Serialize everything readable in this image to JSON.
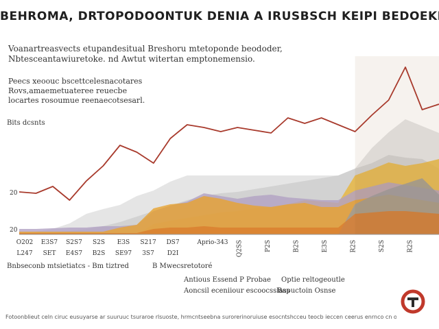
{
  "header": {
    "title": "BEHROMA, DRTOPODOONTUK DENIA A IRUSBSCH  KEIPI BEDOEKPE",
    "subtitle": "Voanartreasvects etupandesitual Breshoru mtetoponde beododer, Nbtesceantawiuretoke. nd Awtut witertan emptonemensio.",
    "note": "Peecs xeoouc bscettcelesnacotares Rovs,amaemetuateree reuecbe locartes rosoumue reenaecotsesarl."
  },
  "chart_data": {
    "type": "area",
    "title": "BEHROMA, DRTOPODOONTUK DENIA A IRUSBSCH  KEIPI BEDOEKPE",
    "ylabel": "Bits dcsnts",
    "xlabel": "",
    "x_labels": [
      [
        "O202",
        "L247"
      ],
      [
        "E3S7",
        "SET"
      ],
      [
        "S2S7",
        "E4S7"
      ],
      [
        "S2S",
        "B2S"
      ],
      [
        "E3S",
        "SE97"
      ],
      [
        "S217",
        "3S7"
      ],
      [
        "DS7",
        "D2I"
      ],
      [
        "Aprio-343",
        ""
      ],
      [
        "Q2SS",
        ""
      ],
      [
        "P2S",
        ""
      ],
      [
        "B2S",
        ""
      ],
      [
        "E3S",
        ""
      ],
      [
        "R2S",
        ""
      ],
      [
        "S2S",
        ""
      ],
      [
        "R2S",
        ""
      ]
    ],
    "y_ticks": [
      "20",
      "20"
    ],
    "x": [
      0,
      1,
      2,
      3,
      4,
      5,
      6,
      7,
      8,
      9,
      10,
      11,
      12,
      13,
      14,
      15,
      16,
      17,
      18,
      19,
      20,
      21,
      22,
      23,
      24,
      25
    ],
    "series": [
      {
        "color": "#e0e0e0",
        "values": [
          2,
          4,
          8,
          16,
          30,
          37,
          43,
          56,
          64,
          77,
          86,
          86,
          86,
          86,
          86,
          86,
          86,
          86,
          86,
          86,
          96,
          126,
          149,
          168,
          158,
          148
        ]
      },
      {
        "color": "#cfcfcf",
        "values": [
          1,
          2,
          3,
          5,
          8,
          12,
          18,
          26,
          34,
          42,
          50,
          56,
          60,
          62,
          66,
          70,
          74,
          78,
          82,
          86,
          96,
          104,
          116,
          112,
          110,
          96
        ]
      },
      {
        "color": "#e8b53b",
        "values": [
          0,
          0,
          0,
          0,
          0,
          0,
          0,
          0,
          15,
          20,
          24,
          28,
          32,
          34,
          38,
          40,
          44,
          50,
          48,
          46,
          86,
          95,
          105,
          100,
          104,
          110
        ]
      },
      {
        "color": "#b1a1c3",
        "values": [
          8,
          8,
          9,
          10,
          10,
          12,
          12,
          14,
          34,
          42,
          48,
          60,
          56,
          52,
          56,
          58,
          54,
          52,
          50,
          50,
          64,
          70,
          76,
          72,
          68,
          64
        ]
      },
      {
        "color": "#e7a22f",
        "values": [
          4,
          4,
          4,
          4,
          4,
          4,
          10,
          14,
          38,
          44,
          46,
          56,
          52,
          46,
          42,
          40,
          44,
          46,
          40,
          40,
          50,
          54,
          58,
          54,
          50,
          46
        ]
      },
      {
        "color": "#9b9b9b",
        "values": [
          0,
          0,
          0,
          0,
          0,
          0,
          0,
          0,
          0,
          0,
          0,
          0,
          0,
          0,
          0,
          0,
          0,
          0,
          0,
          0,
          44,
          56,
          66,
          74,
          82,
          58
        ]
      },
      {
        "color": "#d97d2e",
        "values": [
          2,
          2,
          2,
          2,
          2,
          2,
          2,
          2,
          8,
          10,
          10,
          12,
          10,
          10,
          10,
          10,
          10,
          10,
          10,
          10,
          30,
          32,
          34,
          34,
          32,
          30
        ]
      },
      {
        "color": "#a83a2c",
        "line": true,
        "values": [
          62,
          60,
          70,
          50,
          78,
          100,
          130,
          120,
          104,
          140,
          160,
          156,
          150,
          156,
          152,
          148,
          170,
          162,
          170,
          160,
          150,
          174,
          196,
          244,
          182,
          190
        ]
      }
    ],
    "ylim": [
      0,
      250
    ],
    "grid": false,
    "legend": [
      {
        "label": "Bnbseconb mtsietiatcs - Bm tiztred",
        "color": "#a83a2c"
      },
      {
        "label": "B  Mwecsretotoré",
        "color": "#2b2b2b"
      },
      {
        "label": "Antious Essend P Probae",
        "color": "#e8b53b"
      },
      {
        "label": "Optie reltogeoutle",
        "color": "#b1a1c3"
      },
      {
        "label": "Aoncsil eceniiour escoocsslass",
        "color": "#9b9b9b"
      },
      {
        "label": "Bapuctoin Osnse",
        "color": "#d97d2e"
      }
    ]
  },
  "footer": {
    "source": "Fotoonblieut celn ciruc eusuyarse ar suuruuc tsuraroe rlsuoste, hrmcntseebna surorerinoruiuse esocntshcceu teocb ieccen ceerus enrnco cn orbbe"
  },
  "logo": {
    "color": "#c0392b"
  }
}
